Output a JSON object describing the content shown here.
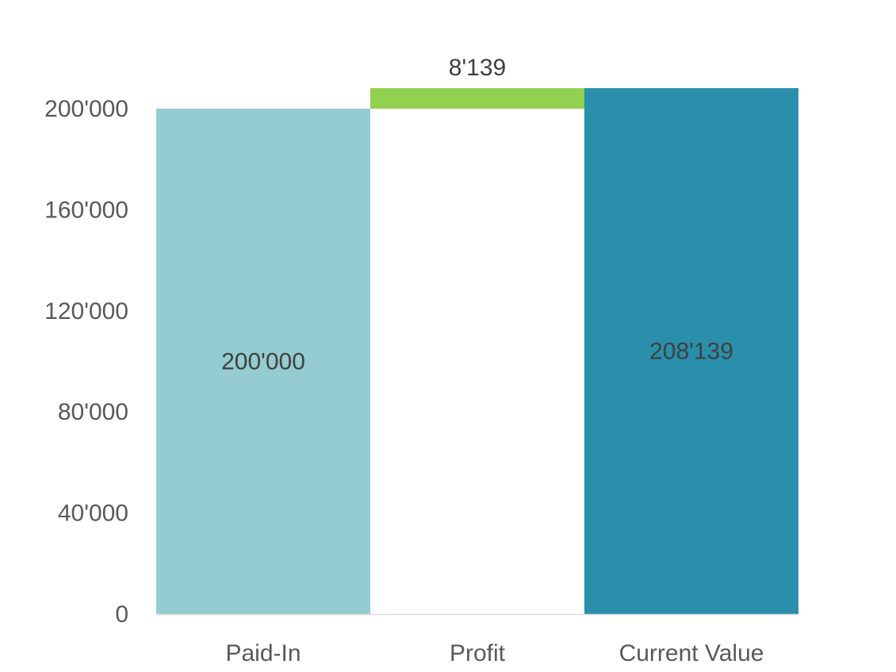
{
  "chart_data": {
    "type": "bar",
    "subtype": "waterfall",
    "title": "",
    "xlabel": "",
    "ylabel": "",
    "categories": [
      "Paid-In",
      "Profit",
      "Current Value"
    ],
    "bars": [
      {
        "category": "Paid-In",
        "base": 0,
        "value": 200000,
        "label": "200'000",
        "kind": "total",
        "color": "#94CCD1"
      },
      {
        "category": "Profit",
        "base": 200000,
        "value": 8139,
        "label": "8'139",
        "kind": "increase",
        "color": "#92D050"
      },
      {
        "category": "Current Value",
        "base": 0,
        "value": 208139,
        "label": "208'139",
        "kind": "total",
        "color": "#2A8FAB"
      }
    ],
    "ylim": [
      0,
      200000
    ],
    "yticks": [
      0,
      40000,
      80000,
      120000,
      160000,
      200000
    ],
    "ytick_labels": [
      "0",
      "40'000",
      "80'000",
      "120'000",
      "160'000",
      "200'000"
    ],
    "grid": false,
    "legend": "none"
  },
  "colors": {
    "paid_in": "#94CCD1",
    "profit": "#92D050",
    "current_value": "#2A8FAB",
    "axis": "#D9D9D9",
    "tick_text": "#595959",
    "label_text": "#404040"
  }
}
